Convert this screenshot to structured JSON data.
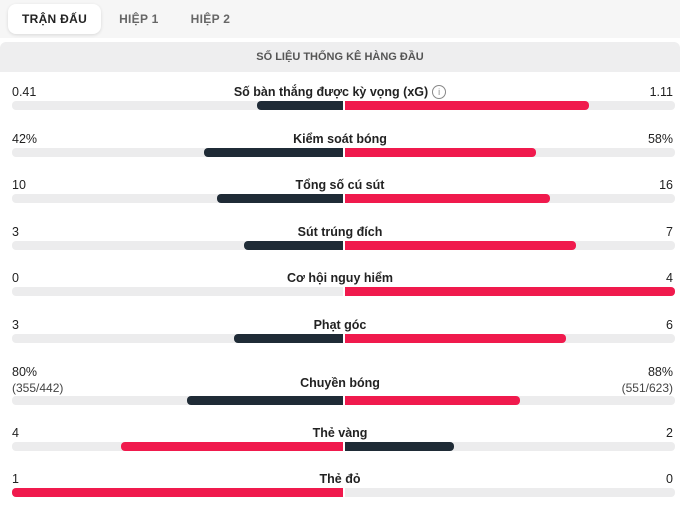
{
  "tabs": [
    {
      "label": "TRẬN ĐẤU",
      "active": true
    },
    {
      "label": "HIỆP 1",
      "active": false
    },
    {
      "label": "HIỆP 2",
      "active": false
    }
  ],
  "section_title": "SỐ LIỆU THỐNG KÊ HÀNG ĐẦU",
  "colors": {
    "home": "#1f2b36",
    "away": "#f01a4d",
    "track": "#ececed"
  },
  "stats": [
    {
      "label": "Số bàn thắng được kỳ vọng (xG)",
      "info_icon": "info-icon",
      "home": "0.41",
      "away": "1.11",
      "home_fill": 0.26,
      "away_fill": 0.74,
      "home_color": "home",
      "away_color": "away"
    },
    {
      "label": "Kiểm soát bóng",
      "home": "42%",
      "away": "58%",
      "home_fill": 0.42,
      "away_fill": 0.58,
      "home_color": "home",
      "away_color": "away"
    },
    {
      "label": "Tổng số cú sút",
      "home": "10",
      "away": "16",
      "home_fill": 0.38,
      "away_fill": 0.62,
      "home_color": "home",
      "away_color": "away"
    },
    {
      "label": "Sút trúng đích",
      "home": "3",
      "away": "7",
      "home_fill": 0.3,
      "away_fill": 0.7,
      "home_color": "home",
      "away_color": "away"
    },
    {
      "label": "Cơ hội nguy hiểm",
      "home": "0",
      "away": "4",
      "home_fill": 0.0,
      "away_fill": 1.0,
      "home_color": "home",
      "away_color": "away"
    },
    {
      "label": "Phạt góc",
      "home": "3",
      "away": "6",
      "home_fill": 0.33,
      "away_fill": 0.67,
      "home_color": "home",
      "away_color": "away"
    },
    {
      "label": "Chuyền bóng",
      "home": "80%",
      "home_sub": "(355/442)",
      "away": "88%",
      "away_sub": "(551/623)",
      "home_fill": 0.47,
      "away_fill": 0.53,
      "home_color": "home",
      "away_color": "away"
    },
    {
      "label": "Thẻ vàng",
      "home": "4",
      "away": "2",
      "home_fill": 0.67,
      "away_fill": 0.33,
      "home_color": "away",
      "away_color": "home"
    },
    {
      "label": "Thẻ đỏ",
      "home": "1",
      "away": "0",
      "home_fill": 1.0,
      "away_fill": 0.0,
      "home_color": "away",
      "away_color": "home"
    }
  ]
}
